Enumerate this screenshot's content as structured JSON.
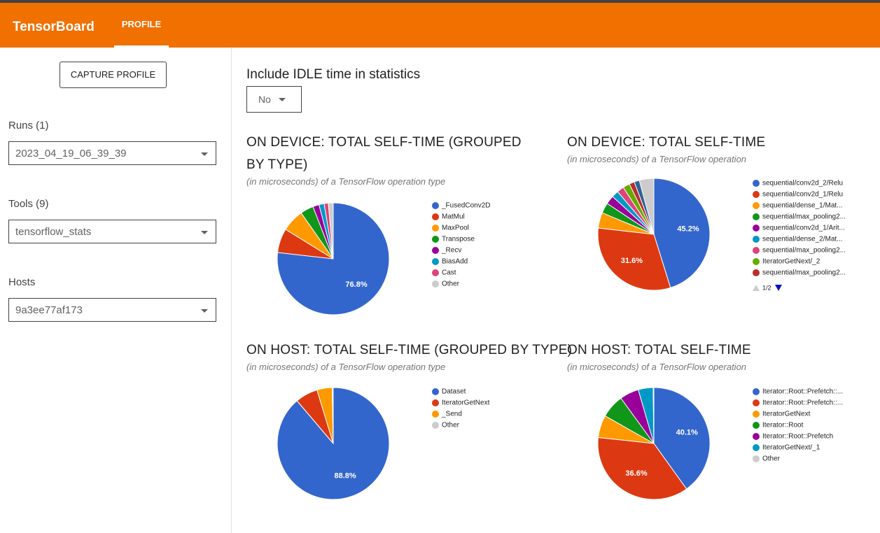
{
  "header": {
    "brand": "TensorBoard",
    "tab": "PROFILE"
  },
  "sidebar": {
    "capture": "CAPTURE PROFILE",
    "runs_label": "Runs (1)",
    "run": "2023_04_19_06_39_39",
    "tools_label": "Tools (9)",
    "tool": "tensorflow_stats",
    "hosts_label": "Hosts",
    "host": "9a3ee77af173"
  },
  "idle": {
    "label": "Include IDLE time in statistics",
    "value": "No"
  },
  "chart_data": [
    {
      "type": "pie",
      "title": "ON DEVICE: TOTAL SELF-TIME (GROUPED BY TYPE)",
      "subtitle": "(in microseconds) of a TensorFlow operation type",
      "categories": [
        "_FusedConv2D",
        "MatMul",
        "MaxPool",
        "Transpose",
        "_Recv",
        "BiasAdd",
        "Cast",
        "Other"
      ],
      "values": [
        76.8,
        7,
        6.5,
        3.8,
        1.8,
        1.5,
        1.2,
        1.4
      ],
      "value_labels": [
        "76.8%",
        null,
        null,
        null,
        null,
        null,
        null,
        null
      ],
      "colors": [
        "#3366cc",
        "#dc3912",
        "#ff9900",
        "#109618",
        "#990099",
        "#0099c6",
        "#dd4477",
        "#cccccc"
      ]
    },
    {
      "type": "pie",
      "title": "ON DEVICE: TOTAL SELF-TIME",
      "subtitle": "(in microseconds) of a TensorFlow operation",
      "categories": [
        "sequential/conv2d_2/Relu",
        "sequential/conv2d_1/Relu",
        "sequential/dense_1/Mat...",
        "sequential/max_pooling2...",
        "sequential/conv2d_1/Arit...",
        "sequential/dense_2/Mat...",
        "sequential/max_pooling2...",
        "IteratorGetNext/_2",
        "sequential/max_pooling2...",
        null,
        null
      ],
      "values": [
        45.2,
        31.6,
        4.5,
        3,
        2.5,
        2,
        2,
        2,
        1.5,
        1.5,
        4.2
      ],
      "value_labels": [
        "45.2%",
        "31.6%",
        null,
        null,
        null,
        null,
        null,
        null,
        null,
        null,
        null
      ],
      "colors": [
        "#3366cc",
        "#dc3912",
        "#ff9900",
        "#109618",
        "#990099",
        "#0099c6",
        "#dd4477",
        "#66aa00",
        "#b82e2e",
        "#316395",
        "#cccccc"
      ],
      "legend_page": "1/2"
    },
    {
      "type": "pie",
      "title": "ON HOST: TOTAL SELF-TIME (GROUPED BY TYPE)",
      "subtitle": "(in microseconds) of a TensorFlow operation type",
      "categories": [
        "Dataset",
        "IteratorGetNext",
        "_Send",
        "Other"
      ],
      "values": [
        88.8,
        6.5,
        4.4,
        0.3
      ],
      "value_labels": [
        "88.8%",
        null,
        null,
        null
      ],
      "colors": [
        "#3366cc",
        "#dc3912",
        "#ff9900",
        "#cccccc"
      ]
    },
    {
      "type": "pie",
      "title": "ON HOST: TOTAL SELF-TIME",
      "subtitle": "(in microseconds) of a TensorFlow operation",
      "categories": [
        "Iterator::Root::Prefetch::...",
        "Iterator::Root::Prefetch::...",
        "IteratorGetNext",
        "Iterator::Root",
        "Iterator::Root::Prefetch",
        "IteratorGetNext/_1",
        "Other"
      ],
      "values": [
        40.1,
        36.6,
        6.5,
        6.8,
        5.5,
        4.3,
        0.2
      ],
      "value_labels": [
        "40.1%",
        "36.6%",
        null,
        null,
        null,
        null,
        null
      ],
      "colors": [
        "#3366cc",
        "#dc3912",
        "#ff9900",
        "#109618",
        "#990099",
        "#0099c6",
        "#cccccc"
      ]
    }
  ]
}
